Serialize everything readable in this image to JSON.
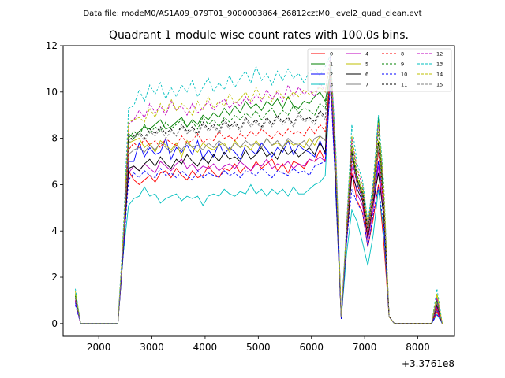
{
  "suptitle": "Data file: modeM0/AS1A09_079T01_9000003864_26812cztM0_level2_quad_clean.evt",
  "chart_data": {
    "type": "line",
    "title": "Quadrant 1 module wise count rates with 100.0s bins.",
    "xlabel": "",
    "ylabel": "",
    "x_offset_label": "+3.3761e8",
    "xlim": [
      1330,
      8690
    ],
    "ylim": [
      -0.55,
      12.0
    ],
    "xticks": [
      2000,
      3000,
      4000,
      5000,
      6000,
      7000,
      8000
    ],
    "yticks": [
      0,
      2,
      4,
      6,
      8,
      10,
      12
    ],
    "grid": false,
    "legend_position": "top-right",
    "legend_columns": 4,
    "x": [
      1560,
      1660,
      1760,
      1860,
      1960,
      2060,
      2160,
      2260,
      2360,
      2460,
      2560,
      2660,
      2760,
      2860,
      2960,
      3060,
      3160,
      3260,
      3360,
      3460,
      3560,
      3660,
      3760,
      3860,
      3960,
      4060,
      4160,
      4260,
      4360,
      4460,
      4560,
      4660,
      4760,
      4860,
      4960,
      5060,
      5160,
      5260,
      5360,
      5460,
      5560,
      5660,
      5760,
      5860,
      5960,
      6060,
      6160,
      6260,
      6360,
      6460,
      6560,
      6660,
      6760,
      6860,
      6960,
      7060,
      7160,
      7260,
      7360,
      7460,
      7560,
      7660,
      7760,
      7860,
      7960,
      8060,
      8160,
      8260,
      8360,
      8460
    ],
    "series": [
      {
        "name": "0",
        "color": "#ff0000",
        "dash": false,
        "values": [
          1.2,
          0,
          0,
          0,
          0,
          0,
          0,
          0,
          0,
          3.0,
          6.6,
          6.2,
          6.0,
          6.2,
          6.4,
          6.1,
          6.5,
          6.6,
          6.3,
          6.7,
          6.4,
          6.2,
          6.6,
          6.3,
          6.4,
          6.8,
          6.5,
          6.3,
          6.7,
          6.6,
          6.9,
          6.5,
          6.8,
          6.6,
          7.0,
          6.7,
          6.9,
          7.1,
          6.6,
          6.9,
          6.5,
          7.0,
          6.9,
          6.7,
          7.1,
          7.0,
          7.5,
          7.0,
          11.0,
          5.5,
          0.2,
          3.5,
          6.5,
          5.3,
          4.8,
          3.3,
          4.5,
          6.0,
          3.5,
          0.3,
          0,
          0,
          0,
          0,
          0,
          0,
          0,
          0,
          0.5,
          0
        ]
      },
      {
        "name": "1",
        "color": "#008000",
        "dash": false,
        "values": [
          1.1,
          0,
          0,
          0,
          0,
          0,
          0,
          0,
          0,
          3.5,
          8.2,
          8.0,
          8.3,
          8.5,
          8.4,
          8.6,
          8.8,
          8.4,
          8.5,
          8.7,
          8.9,
          8.5,
          8.8,
          8.6,
          9.0,
          8.8,
          9.1,
          8.9,
          9.3,
          9.0,
          9.4,
          9.1,
          9.6,
          9.3,
          9.5,
          9.2,
          9.6,
          9.4,
          9.7,
          9.3,
          9.8,
          9.4,
          9.3,
          9.6,
          9.5,
          9.8,
          10.0,
          9.6,
          10.9,
          7.0,
          0.3,
          4.0,
          7.5,
          6.2,
          5.6,
          3.9,
          5.5,
          8.9,
          5.3,
          0.3,
          0,
          0,
          0,
          0,
          0,
          0,
          0,
          0,
          1.0,
          0
        ]
      },
      {
        "name": "2",
        "color": "#0000ff",
        "dash": false,
        "values": [
          0.9,
          0,
          0,
          0,
          0,
          0,
          0,
          0,
          0,
          3.3,
          7.0,
          7.0,
          7.8,
          7.2,
          7.6,
          7.3,
          7.4,
          8.0,
          7.1,
          7.6,
          7.4,
          7.7,
          7.3,
          7.9,
          7.1,
          7.5,
          7.2,
          7.8,
          7.3,
          7.6,
          7.4,
          7.1,
          7.7,
          7.5,
          7.3,
          7.8,
          7.5,
          7.2,
          7.6,
          7.4,
          7.9,
          7.3,
          7.7,
          7.5,
          7.4,
          7.2,
          7.9,
          7.3,
          11.5,
          6.2,
          0.2,
          3.8,
          7.2,
          6.0,
          5.4,
          3.8,
          5.3,
          7.0,
          5.2,
          0.3,
          0,
          0,
          0,
          0,
          0,
          0,
          0,
          0,
          0.6,
          0
        ]
      },
      {
        "name": "3",
        "color": "#00bfbf",
        "dash": false,
        "values": [
          1.3,
          0,
          0,
          0,
          0,
          0,
          0,
          0,
          0,
          3.0,
          5.1,
          5.4,
          5.5,
          5.9,
          5.5,
          5.6,
          5.2,
          5.4,
          5.5,
          5.6,
          5.3,
          5.5,
          5.4,
          5.5,
          5.1,
          5.5,
          5.6,
          5.5,
          5.8,
          5.6,
          5.5,
          5.7,
          5.6,
          6.0,
          5.6,
          5.8,
          5.5,
          5.8,
          5.6,
          5.8,
          5.5,
          5.9,
          5.6,
          5.6,
          5.8,
          6.0,
          6.1,
          6.4,
          10.8,
          5.5,
          0.2,
          3.0,
          4.9,
          4.4,
          3.5,
          2.5,
          3.8,
          5.8,
          4.0,
          0.3,
          0,
          0,
          0,
          0,
          0,
          0,
          0,
          0,
          0.4,
          0
        ]
      },
      {
        "name": "4",
        "color": "#bf00bf",
        "dash": false,
        "values": [
          1.0,
          0,
          0,
          0,
          0,
          0,
          0,
          0,
          0,
          3.2,
          6.5,
          6.8,
          6.6,
          6.9,
          6.7,
          6.5,
          7.0,
          6.8,
          6.6,
          6.9,
          7.1,
          6.7,
          6.9,
          6.6,
          6.8,
          6.7,
          6.9,
          6.6,
          6.8,
          6.9,
          6.7,
          7.0,
          6.8,
          6.6,
          6.9,
          6.8,
          7.1,
          6.7,
          6.9,
          6.8,
          7.0,
          6.7,
          6.9,
          6.8,
          7.1,
          7.0,
          7.2,
          7.0,
          10.5,
          5.8,
          0.2,
          3.6,
          6.8,
          5.6,
          5.1,
          3.6,
          4.9,
          6.8,
          4.8,
          0.3,
          0,
          0,
          0,
          0,
          0,
          0,
          0,
          0,
          0.7,
          0
        ]
      },
      {
        "name": "5",
        "color": "#bfbf00",
        "dash": false,
        "values": [
          1.4,
          0,
          0,
          0,
          0,
          0,
          0,
          0,
          0,
          3.4,
          7.8,
          7.9,
          8.0,
          7.6,
          7.8,
          7.4,
          7.9,
          7.7,
          7.5,
          7.8,
          7.2,
          7.9,
          7.6,
          7.4,
          7.8,
          7.6,
          7.5,
          7.7,
          7.8,
          7.4,
          7.9,
          7.6,
          7.7,
          7.5,
          7.9,
          7.6,
          8.0,
          7.7,
          7.8,
          7.6,
          7.9,
          7.7,
          7.8,
          7.6,
          8.0,
          7.7,
          8.1,
          7.9,
          11.2,
          6.6,
          0.3,
          3.9,
          7.6,
          6.3,
          5.7,
          4.0,
          5.6,
          7.9,
          5.6,
          0.3,
          0,
          0,
          0,
          0,
          0,
          0,
          0,
          0,
          1.2,
          0
        ]
      },
      {
        "name": "6",
        "color": "#000000",
        "dash": false,
        "values": [
          1.0,
          0,
          0,
          0,
          0,
          0,
          0,
          0,
          0,
          3.1,
          6.7,
          6.8,
          6.6,
          6.9,
          7.1,
          6.8,
          7.2,
          6.9,
          6.7,
          7.1,
          6.9,
          7.3,
          7.0,
          6.8,
          7.2,
          6.9,
          7.3,
          7.0,
          7.4,
          7.1,
          7.2,
          7.0,
          7.5,
          7.1,
          7.3,
          7.6,
          7.2,
          7.4,
          7.1,
          7.6,
          7.3,
          7.5,
          7.2,
          7.4,
          7.6,
          7.3,
          7.8,
          7.4,
          11.3,
          6.0,
          0.2,
          3.7,
          6.4,
          5.8,
          5.3,
          3.7,
          5.2,
          6.5,
          4.6,
          0.3,
          0,
          0,
          0,
          0,
          0,
          0,
          0,
          0,
          0.8,
          0
        ]
      },
      {
        "name": "7",
        "color": "#808080",
        "dash": false,
        "values": [
          1.1,
          0,
          0,
          0,
          0,
          0,
          0,
          0,
          0,
          3.3,
          7.3,
          7.5,
          7.6,
          7.4,
          7.7,
          7.5,
          7.8,
          7.6,
          7.4,
          7.7,
          7.5,
          7.8,
          7.6,
          7.7,
          7.5,
          7.8,
          7.6,
          7.9,
          7.7,
          7.5,
          7.8,
          7.6,
          7.9,
          7.7,
          7.8,
          7.6,
          8.0,
          7.7,
          7.9,
          7.6,
          8.0,
          7.8,
          7.7,
          7.9,
          7.6,
          8.0,
          8.1,
          7.9,
          11.4,
          6.4,
          0.3,
          3.8,
          7.3,
          6.1,
          5.5,
          3.9,
          5.4,
          7.5,
          5.1,
          0.3,
          0,
          0,
          0,
          0,
          0,
          0,
          0,
          0,
          0.9,
          0
        ]
      },
      {
        "name": "8",
        "color": "#ff0000",
        "dash": true,
        "values": [
          1.0,
          0,
          0,
          0,
          0,
          0,
          0,
          0,
          0,
          3.2,
          7.5,
          7.8,
          7.6,
          8.0,
          7.7,
          7.9,
          7.6,
          8.0,
          7.8,
          7.7,
          8.1,
          7.8,
          7.9,
          8.2,
          7.8,
          8.0,
          7.9,
          8.3,
          8.0,
          8.1,
          7.9,
          8.2,
          8.0,
          8.3,
          8.1,
          8.4,
          8.2,
          8.0,
          8.3,
          8.1,
          8.4,
          8.2,
          8.3,
          8.1,
          8.5,
          8.2,
          8.6,
          8.3,
          10.8,
          6.5,
          0.3,
          3.7,
          7.0,
          6.0,
          5.4,
          3.8,
          5.3,
          7.4,
          5.0,
          0.3,
          0,
          0,
          0,
          0,
          0,
          0,
          0,
          0,
          0.6,
          0
        ]
      },
      {
        "name": "9",
        "color": "#008000",
        "dash": true,
        "values": [
          1.2,
          0,
          0,
          0,
          0,
          0,
          0,
          0,
          0,
          3.4,
          8.0,
          8.3,
          8.1,
          8.6,
          8.2,
          8.5,
          8.3,
          8.7,
          8.4,
          8.6,
          8.8,
          8.5,
          8.7,
          8.4,
          8.9,
          8.6,
          8.8,
          8.5,
          8.9,
          8.7,
          9.0,
          8.8,
          9.1,
          8.9,
          9.2,
          8.8,
          9.1,
          9.3,
          8.9,
          9.2,
          9.0,
          9.4,
          9.1,
          9.3,
          9.2,
          9.0,
          9.5,
          9.3,
          11.0,
          6.9,
          0.3,
          4.0,
          7.8,
          6.4,
          5.8,
          4.1,
          5.7,
          8.3,
          5.4,
          0.3,
          0,
          0,
          0,
          0,
          0,
          0,
          0,
          0,
          1.0,
          0
        ]
      },
      {
        "name": "10",
        "color": "#0000ff",
        "dash": true,
        "values": [
          0.8,
          0,
          0,
          0,
          0,
          0,
          0,
          0,
          0,
          3.0,
          6.2,
          6.5,
          6.3,
          6.6,
          6.4,
          6.3,
          6.7,
          6.4,
          6.5,
          6.3,
          6.6,
          6.4,
          6.2,
          6.6,
          6.3,
          6.5,
          6.4,
          6.3,
          6.6,
          6.4,
          6.5,
          6.3,
          6.6,
          6.5,
          6.4,
          6.7,
          6.5,
          6.3,
          6.6,
          6.5,
          6.4,
          6.7,
          6.5,
          6.6,
          6.4,
          6.8,
          6.9,
          7.0,
          10.4,
          5.6,
          0.2,
          3.5,
          5.8,
          5.2,
          4.8,
          3.3,
          4.7,
          5.9,
          4.2,
          0.3,
          0,
          0,
          0,
          0,
          0,
          0,
          0,
          0,
          0.4,
          0
        ]
      },
      {
        "name": "11",
        "color": "#000000",
        "dash": true,
        "values": [
          1.1,
          0,
          0,
          0,
          0,
          0,
          0,
          0,
          0,
          3.3,
          7.9,
          8.1,
          8.3,
          8.0,
          8.4,
          8.2,
          8.5,
          8.2,
          8.4,
          8.1,
          8.6,
          8.3,
          8.5,
          8.2,
          8.7,
          8.4,
          8.6,
          8.3,
          8.8,
          8.5,
          8.7,
          8.4,
          8.9,
          8.6,
          8.8,
          8.5,
          8.9,
          8.6,
          9.0,
          8.7,
          8.9,
          8.6,
          9.1,
          8.8,
          8.9,
          8.7,
          9.2,
          8.9,
          11.1,
          6.7,
          0.3,
          3.9,
          7.4,
          6.2,
          5.6,
          4.0,
          5.5,
          7.8,
          5.2,
          0.3,
          0,
          0,
          0,
          0,
          0,
          0,
          0,
          0,
          0.8,
          0
        ]
      },
      {
        "name": "12",
        "color": "#bf00bf",
        "dash": true,
        "values": [
          1.0,
          0,
          0,
          0,
          0,
          0,
          0,
          0,
          0,
          3.5,
          8.6,
          8.8,
          9.2,
          8.9,
          9.5,
          9.1,
          9.4,
          9.0,
          9.6,
          9.2,
          9.4,
          9.0,
          9.5,
          9.1,
          9.3,
          9.6,
          9.2,
          9.5,
          9.7,
          9.3,
          9.6,
          9.4,
          9.8,
          9.5,
          9.9,
          9.6,
          10.1,
          9.7,
          10.0,
          9.6,
          10.3,
          9.8,
          10.2,
          9.9,
          10.1,
          9.8,
          10.4,
          10.0,
          11.6,
          7.2,
          0.3,
          4.1,
          8.0,
          6.6,
          6.0,
          4.2,
          5.9,
          8.6,
          5.8,
          0.3,
          0,
          0,
          0,
          0,
          0,
          0,
          0,
          0,
          1.1,
          0
        ]
      },
      {
        "name": "13",
        "color": "#00bfbf",
        "dash": true,
        "values": [
          1.5,
          0,
          0,
          0,
          0,
          0,
          0,
          0,
          0,
          4.0,
          9.3,
          9.4,
          10.1,
          9.6,
          10.3,
          9.9,
          10.4,
          9.7,
          10.2,
          9.8,
          10.3,
          10.0,
          10.5,
          9.8,
          10.2,
          10.6,
          10.0,
          10.4,
          10.1,
          10.7,
          10.2,
          10.6,
          10.9,
          10.4,
          11.1,
          10.5,
          10.8,
          10.3,
          10.9,
          10.5,
          11.0,
          10.6,
          10.8,
          10.4,
          10.9,
          11.0,
          10.7,
          11.1,
          11.6,
          7.5,
          0.3,
          4.3,
          8.6,
          6.9,
          6.2,
          4.4,
          6.1,
          9.0,
          6.1,
          0.3,
          0,
          0,
          0,
          0,
          0,
          0,
          0,
          0,
          1.5,
          0
        ]
      },
      {
        "name": "14",
        "color": "#bfbf00",
        "dash": true,
        "values": [
          1.3,
          0,
          0,
          0,
          0,
          0,
          0,
          0,
          0,
          3.8,
          8.7,
          8.8,
          8.9,
          8.7,
          9.3,
          8.9,
          9.5,
          9.1,
          9.7,
          9.2,
          9.5,
          9.3,
          9.0,
          9.6,
          9.2,
          9.8,
          9.3,
          9.6,
          9.4,
          9.9,
          9.5,
          9.7,
          10.0,
          9.6,
          10.2,
          9.7,
          9.9,
          9.6,
          10.1,
          9.8,
          9.7,
          10.0,
          9.8,
          10.1,
          9.9,
          10.0,
          10.2,
          10.0,
          11.3,
          7.1,
          0.3,
          4.2,
          8.1,
          6.7,
          6.0,
          4.3,
          5.9,
          8.7,
          5.9,
          0.3,
          0,
          0,
          0,
          0,
          0,
          0,
          0,
          0,
          1.3,
          0
        ]
      },
      {
        "name": "15",
        "color": "#808080",
        "dash": true,
        "values": [
          1.1,
          0,
          0,
          0,
          0,
          0,
          0,
          0,
          0,
          3.4,
          7.8,
          8.0,
          8.2,
          7.9,
          8.3,
          8.1,
          8.4,
          8.0,
          8.3,
          8.1,
          8.5,
          8.2,
          8.4,
          8.1,
          8.6,
          8.3,
          8.5,
          8.2,
          8.7,
          8.4,
          8.6,
          8.3,
          8.8,
          8.5,
          8.7,
          8.4,
          8.8,
          8.5,
          8.9,
          8.6,
          8.8,
          8.5,
          9.0,
          8.7,
          8.8,
          8.6,
          9.1,
          8.8,
          11.0,
          6.8,
          0.3,
          3.9,
          7.3,
          6.1,
          5.6,
          3.9,
          5.5,
          7.7,
          5.2,
          0.3,
          0,
          0,
          0,
          0,
          0,
          0,
          0,
          0,
          0.9,
          0
        ]
      }
    ]
  }
}
